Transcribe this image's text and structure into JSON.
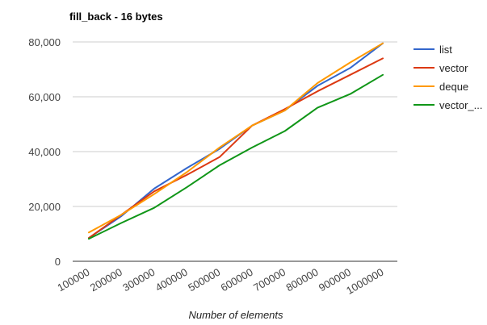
{
  "chart_data": {
    "type": "line",
    "title": "fill_back - 16 bytes",
    "xlabel": "Number of elements",
    "ylabel": "",
    "categories": [
      "100000",
      "200000",
      "300000",
      "400000",
      "500000",
      "600000",
      "700000",
      "800000",
      "900000",
      "1000000"
    ],
    "ylim": [
      0,
      80000
    ],
    "yticks": [
      0,
      20000,
      40000,
      60000,
      80000
    ],
    "ytick_labels": [
      "0",
      "20,000",
      "40,000",
      "60,000",
      "80,000"
    ],
    "grid": true,
    "legend_position": "right",
    "series": [
      {
        "name": "list",
        "color": "#3366cc",
        "values": [
          8500,
          16500,
          26500,
          34000,
          41000,
          49500,
          55000,
          64000,
          70500,
          79500
        ]
      },
      {
        "name": "vector",
        "color": "#dc3912",
        "values": [
          8500,
          17000,
          25500,
          31500,
          38000,
          49500,
          55500,
          62000,
          68000,
          74000
        ]
      },
      {
        "name": "deque",
        "color": "#ff9900",
        "values": [
          10500,
          17000,
          24500,
          32500,
          41500,
          49500,
          55000,
          65000,
          72500,
          79500
        ]
      },
      {
        "name": "vector_...",
        "color": "#109618",
        "values": [
          8200,
          14000,
          19500,
          27000,
          35000,
          41500,
          47500,
          56000,
          61000,
          68000
        ]
      }
    ]
  }
}
